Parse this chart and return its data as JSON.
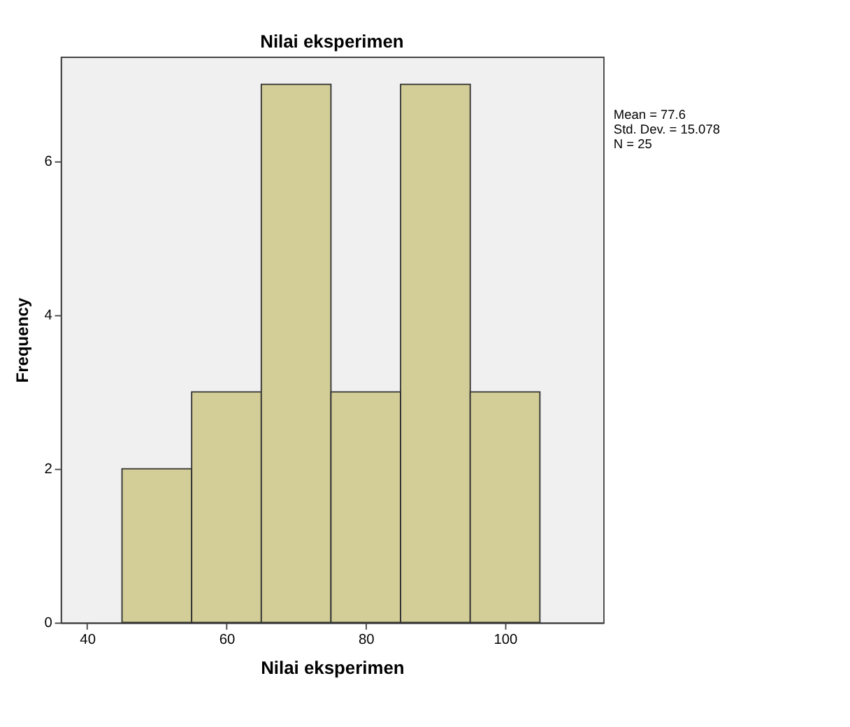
{
  "chart_data": {
    "type": "histogram",
    "title": "Nilai eksperimen",
    "xlabel": "Nilai eksperimen",
    "ylabel": "Frequency",
    "bins": [
      45,
      55,
      65,
      75,
      85,
      95,
      105
    ],
    "values": [
      2,
      3,
      7,
      3,
      7,
      3
    ],
    "color": "#d3ce97",
    "xlim": [
      36.2,
      114.1
    ],
    "xticks": [
      40,
      60,
      80,
      100
    ],
    "ylim": [
      0,
      7.36
    ],
    "yticks": [
      0,
      2,
      4,
      6
    ],
    "grid": false,
    "annotations": [
      "Mean = 77.6",
      "Std. Dev. = 15.078",
      "N = 25"
    ]
  }
}
